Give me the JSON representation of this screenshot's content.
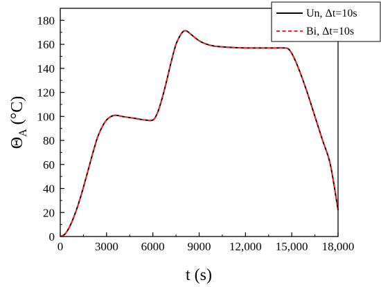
{
  "chart_data": {
    "type": "line",
    "xlabel": "t (s)",
    "ylabel_main": "Θ",
    "ylabel_sub": "A",
    "ylabel_unit": " (°C)",
    "xlim": [
      0,
      18000
    ],
    "ylim": [
      0,
      190
    ],
    "xticks": [
      0,
      3000,
      6000,
      9000,
      12000,
      15000,
      18000
    ],
    "xtick_labels": [
      "0",
      "3000",
      "6000",
      "9000",
      "12,000",
      "15,000",
      "18,000"
    ],
    "yticks": [
      0,
      20,
      40,
      60,
      80,
      100,
      120,
      140,
      160,
      180
    ],
    "ytick_labels": [
      "0",
      "20",
      "40",
      "60",
      "80",
      "100",
      "120",
      "140",
      "160",
      "180"
    ],
    "grid": false,
    "legend_position": "top-right",
    "colors": {
      "un": "#000000",
      "bi": "#ff2020"
    },
    "series": [
      {
        "name": "Un, Δt=10s",
        "style": "solid",
        "x": [
          0,
          300,
          600,
          900,
          1200,
          1500,
          1800,
          2100,
          2400,
          2700,
          3000,
          3300,
          3600,
          4000,
          4500,
          5000,
          5500,
          6000,
          6300,
          6600,
          6900,
          7200,
          7500,
          7800,
          8000,
          8200,
          8500,
          9000,
          9500,
          10000,
          11000,
          12000,
          13000,
          14000,
          14500,
          14800,
          15100,
          15500,
          16000,
          16500,
          17000,
          17500,
          18000
        ],
        "y": [
          0,
          2,
          8,
          17,
          28,
          41,
          55,
          69,
          82,
          91,
          97,
          100,
          101,
          100,
          99,
          98,
          97,
          97,
          103,
          115,
          130,
          146,
          160,
          168,
          171,
          171,
          168,
          163,
          160,
          158.5,
          157.5,
          157,
          157,
          157,
          157,
          156,
          150,
          138,
          120,
          100,
          80,
          60,
          22
        ]
      },
      {
        "name": "Bi, Δt=10s",
        "style": "dashed",
        "x": [
          0,
          300,
          600,
          900,
          1200,
          1500,
          1800,
          2100,
          2400,
          2700,
          3000,
          3300,
          3600,
          4000,
          4500,
          5000,
          5500,
          6000,
          6300,
          6600,
          6900,
          7200,
          7500,
          7800,
          8000,
          8200,
          8500,
          9000,
          9500,
          10000,
          11000,
          12000,
          13000,
          14000,
          14500,
          14800,
          15100,
          15500,
          16000,
          16500,
          17000,
          17500,
          18000
        ],
        "y": [
          0,
          2,
          8,
          17,
          28,
          41,
          55,
          69,
          82,
          91,
          97,
          100,
          101,
          100,
          99,
          98,
          97,
          97,
          103,
          115,
          130,
          146,
          160,
          168,
          171,
          171,
          168,
          163,
          160,
          158.5,
          157.5,
          157,
          157,
          157,
          157,
          156,
          150,
          138,
          120,
          100,
          80,
          60,
          22
        ]
      }
    ]
  }
}
